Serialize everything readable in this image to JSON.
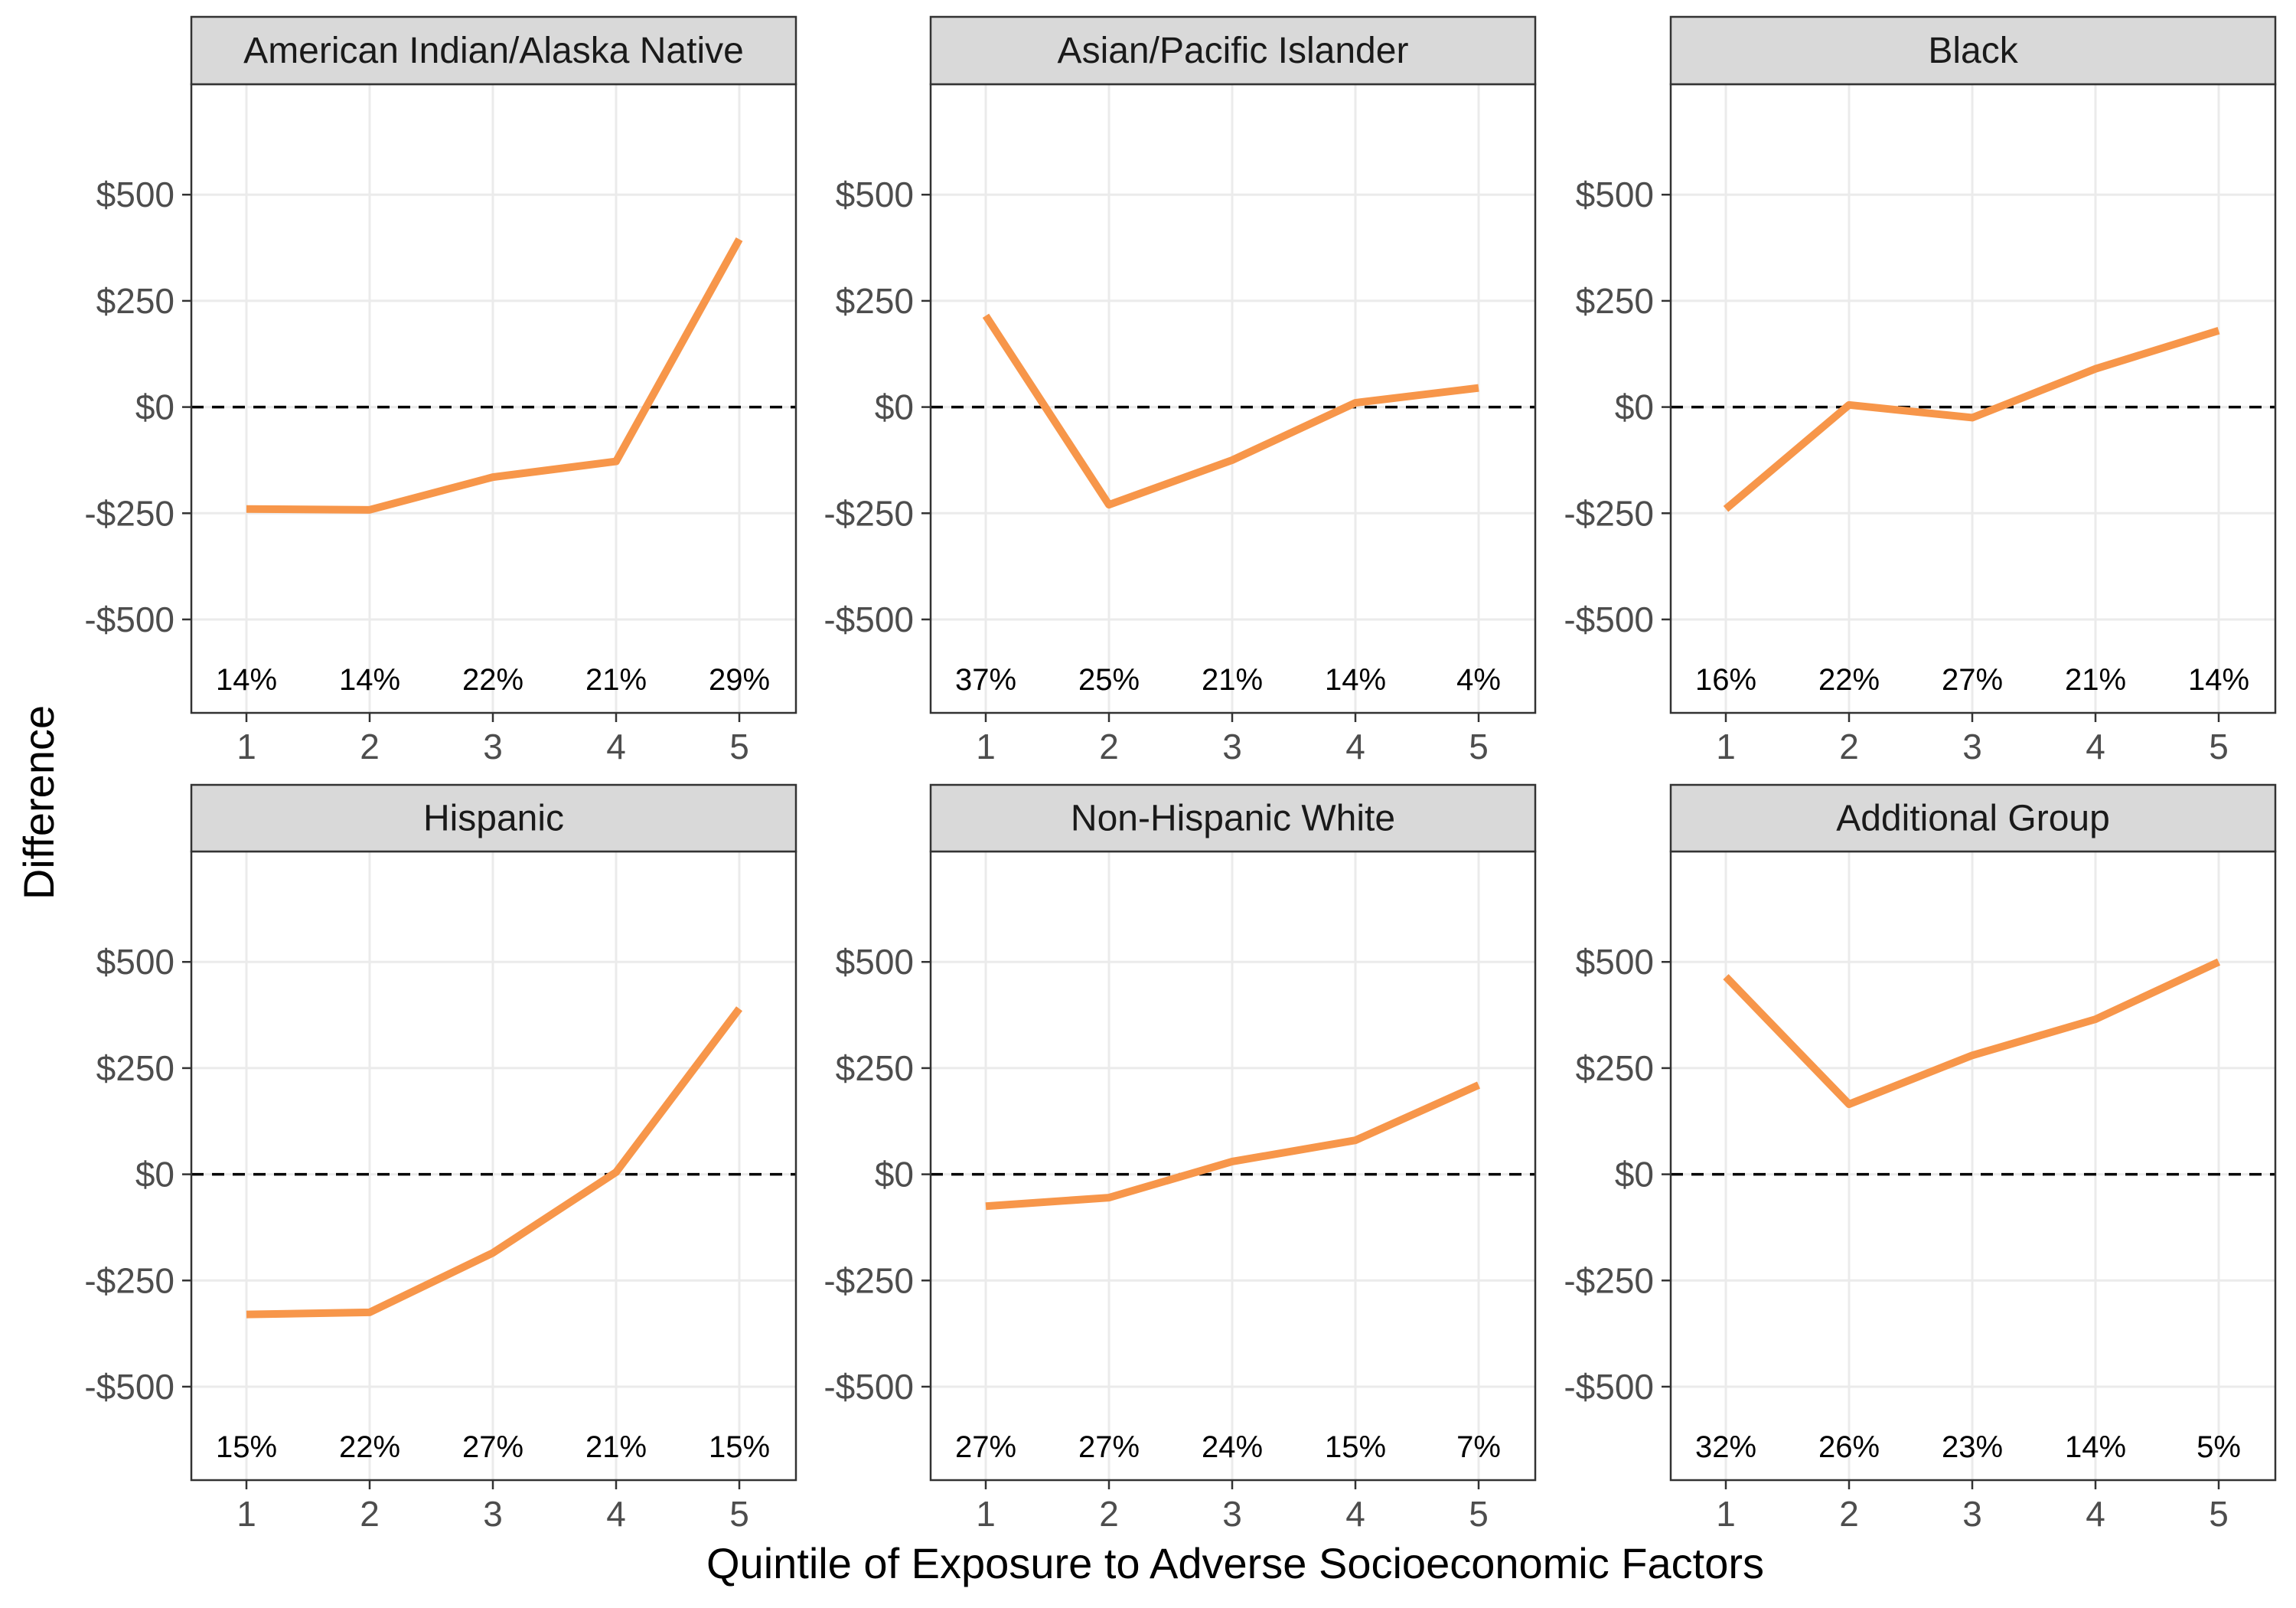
{
  "chart_data": {
    "type": "line",
    "xlabel": "Quintile of Exposure to Adverse Socioeconomic Factors",
    "ylabel": "Difference",
    "ylim": [
      -720,
      760
    ],
    "y_ticks": [
      -500,
      -250,
      0,
      250,
      500
    ],
    "y_tick_labels": [
      "-$500",
      "-$250",
      "$0",
      "$250",
      "$500"
    ],
    "x": [
      1,
      2,
      3,
      4,
      5
    ],
    "x_tick_labels": [
      "1",
      "2",
      "3",
      "4",
      "5"
    ],
    "reference_line": 0,
    "line_color": "#f7964a",
    "grid": true,
    "panels": [
      {
        "title": "American Indian/Alaska Native",
        "values": [
          -240,
          -242,
          -165,
          -128,
          395
        ],
        "shares": [
          "14%",
          "14%",
          "22%",
          "21%",
          "29%"
        ]
      },
      {
        "title": "Asian/Pacific Islander",
        "values": [
          215,
          -230,
          -125,
          10,
          45
        ],
        "shares": [
          "37%",
          "25%",
          "21%",
          "14%",
          "4%"
        ]
      },
      {
        "title": "Black",
        "values": [
          -240,
          5,
          -25,
          90,
          180
        ],
        "shares": [
          "16%",
          "22%",
          "27%",
          "21%",
          "14%"
        ]
      },
      {
        "title": "Hispanic",
        "values": [
          -330,
          -325,
          -185,
          5,
          390
        ],
        "shares": [
          "15%",
          "22%",
          "27%",
          "21%",
          "15%"
        ]
      },
      {
        "title": "Non-Hispanic White",
        "values": [
          -75,
          -55,
          30,
          80,
          210
        ],
        "shares": [
          "27%",
          "27%",
          "24%",
          "15%",
          "7%"
        ]
      },
      {
        "title": "Additional Group",
        "values": [
          465,
          165,
          280,
          365,
          500
        ],
        "shares": [
          "32%",
          "26%",
          "23%",
          "14%",
          "5%"
        ]
      }
    ]
  }
}
